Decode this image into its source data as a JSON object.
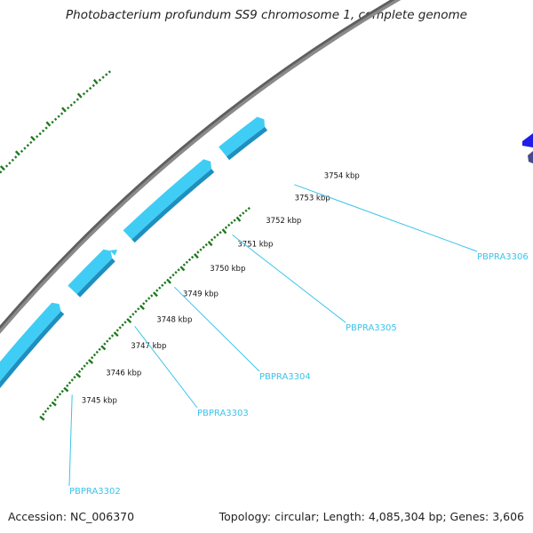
{
  "title": "Photobacterium profundum SS9 chromosome 1, complete genome",
  "accession": "Accession: NC_006370",
  "summary": "Topology: circular; Length: 4,085,304 bp; Genes: 3,606",
  "colors": {
    "gene": "#3fcdf5",
    "gene_edge": "#1e8fbf",
    "gene_dark_blue": "#1e1ee6",
    "gene_slate": "#4a4a8c",
    "backbone": "#8a8a8a",
    "tick": "#1f7a1f",
    "gene_label": "#3cc3ea"
  },
  "tick_labels": [
    "3745 kbp",
    "3746 kbp",
    "3747 kbp",
    "3748 kbp",
    "3749 kbp",
    "3750 kbp",
    "3751 kbp",
    "3752 kbp",
    "3753 kbp",
    "3754 kbp"
  ],
  "genes": [
    {
      "name": "PBPRA3302"
    },
    {
      "name": "PBPRA3303"
    },
    {
      "name": "PBPRA3304"
    },
    {
      "name": "PBPRA3305"
    },
    {
      "name": "PBPRA3306"
    }
  ]
}
